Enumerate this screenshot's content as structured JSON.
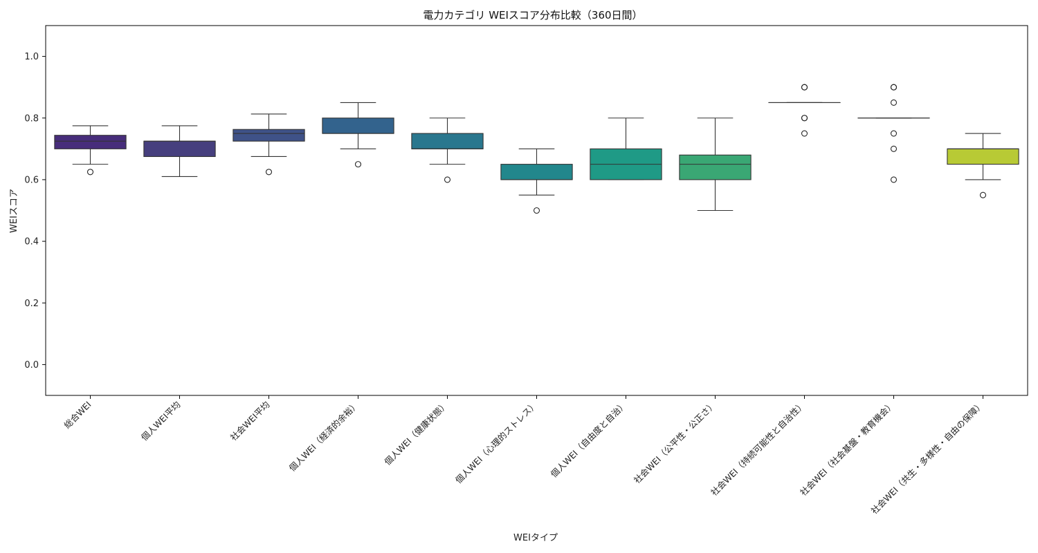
{
  "chart_data": {
    "type": "box",
    "title": "電力カテゴリ WEIスコア分布比較（360日間）",
    "xlabel": "WEIタイプ",
    "ylabel": "WEIスコア",
    "ylim": [
      -0.1,
      1.1
    ],
    "yticks": [
      "0.0",
      "0.2",
      "0.4",
      "0.6",
      "0.8",
      "1.0"
    ],
    "yticks_values": [
      0.0,
      0.2,
      0.4,
      0.6,
      0.8,
      1.0
    ],
    "grid": false,
    "legend": "none",
    "categories": [
      "総合WEI",
      "個人WEI平均",
      "社会WEI平均",
      "個人WEI（経済的余裕）",
      "個人WEI（健康状態）",
      "個人WEI（心理的ストレス）",
      "個人WEI（自由度と自治）",
      "社会WEI（公平性・公正さ）",
      "社会WEI（持続可能性と自治性）",
      "社会WEI（社会基盤・教育機会）",
      "社会WEI（共生・多様性・自由の保障）"
    ],
    "boxes": [
      {
        "whisker_low": 0.65,
        "q1": 0.7,
        "median": 0.725,
        "q3": 0.744,
        "whisker_high": 0.775,
        "outliers": [
          0.625
        ],
        "color": "#472d7b"
      },
      {
        "whisker_low": 0.61,
        "q1": 0.675,
        "median": 0.725,
        "q3": 0.725,
        "whisker_high": 0.775,
        "outliers": [],
        "color": "#463f7e"
      },
      {
        "whisker_low": 0.675,
        "q1": 0.725,
        "median": 0.75,
        "q3": 0.763,
        "whisker_high": 0.813,
        "outliers": [
          0.625
        ],
        "color": "#3f5288"
      },
      {
        "whisker_low": 0.7,
        "q1": 0.75,
        "median": 0.75,
        "q3": 0.8,
        "whisker_high": 0.85,
        "outliers": [
          0.65
        ],
        "color": "#33638d"
      },
      {
        "whisker_low": 0.65,
        "q1": 0.7,
        "median": 0.7,
        "q3": 0.75,
        "whisker_high": 0.8,
        "outliers": [
          0.6
        ],
        "color": "#2a778e"
      },
      {
        "whisker_low": 0.55,
        "q1": 0.6,
        "median": 0.6,
        "q3": 0.65,
        "whisker_high": 0.7,
        "outliers": [
          0.5
        ],
        "color": "#22878c"
      },
      {
        "whisker_low": 0.6,
        "q1": 0.6,
        "median": 0.65,
        "q3": 0.7,
        "whisker_high": 0.8,
        "outliers": [],
        "color": "#1f9a86"
      },
      {
        "whisker_low": 0.5,
        "q1": 0.6,
        "median": 0.65,
        "q3": 0.68,
        "whisker_high": 0.8,
        "outliers": [],
        "color": "#3aa774"
      },
      {
        "whisker_low": 0.85,
        "q1": 0.85,
        "median": 0.85,
        "q3": 0.85,
        "whisker_high": 0.85,
        "outliers": [
          0.9,
          0.9,
          0.8,
          0.8,
          0.75
        ],
        "color": "#6cc05a"
      },
      {
        "whisker_low": 0.8,
        "q1": 0.8,
        "median": 0.8,
        "q3": 0.8,
        "whisker_high": 0.8,
        "outliers": [
          0.9,
          0.9,
          0.85,
          0.75,
          0.7,
          0.6
        ],
        "color": "#9fd537"
      },
      {
        "whisker_low": 0.6,
        "q1": 0.65,
        "median": 0.7,
        "q3": 0.7,
        "whisker_high": 0.75,
        "outliers": [
          0.55
        ],
        "color": "#b8ca35"
      }
    ]
  }
}
